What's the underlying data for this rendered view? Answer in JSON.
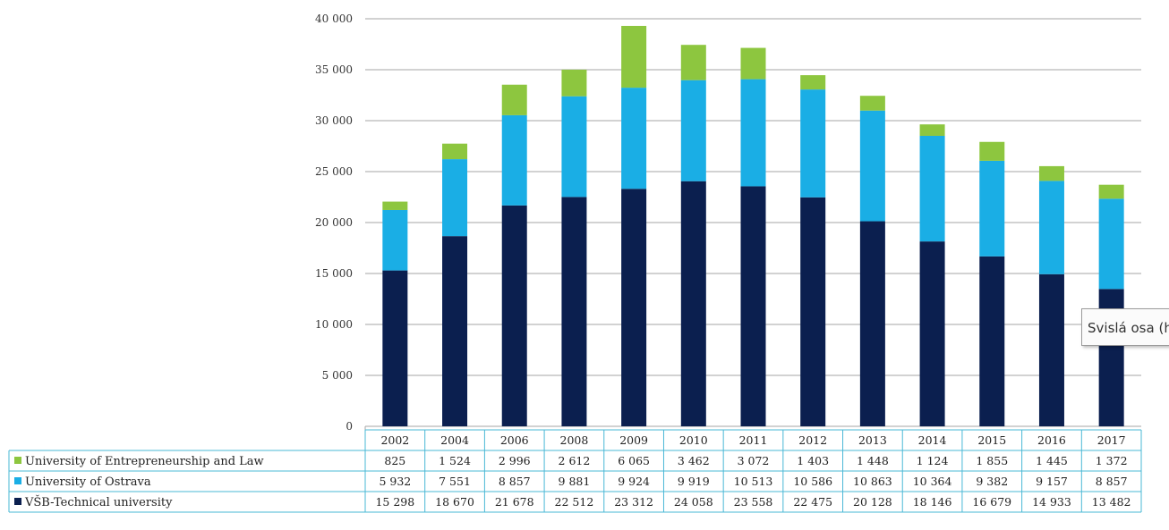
{
  "chart_data": {
    "type": "bar",
    "stacked": true,
    "categories": [
      "2002",
      "2004",
      "2006",
      "2008",
      "2009",
      "2010",
      "2011",
      "2012",
      "2013",
      "2014",
      "2015",
      "2016",
      "2017"
    ],
    "series": [
      {
        "name": "VŠB-Technical university",
        "values": [
          15298,
          18670,
          21678,
          22512,
          23312,
          24058,
          23558,
          22475,
          20128,
          18146,
          16679,
          14933,
          13482
        ],
        "labels": [
          "15 298",
          "18 670",
          "21 678",
          "22 512",
          "23 312",
          "24 058",
          "23 558",
          "22 475",
          "20 128",
          "18 146",
          "16 679",
          "14 933",
          "13 482"
        ]
      },
      {
        "name": "University of Ostrava",
        "values": [
          5932,
          7551,
          8857,
          9881,
          9924,
          9919,
          10513,
          10586,
          10863,
          10364,
          9382,
          9157,
          8857
        ],
        "labels": [
          "5 932",
          "7 551",
          "8 857",
          "9 881",
          "9 924",
          "9 919",
          "10 513",
          "10 586",
          "10 863",
          "10 364",
          "9 382",
          "9 157",
          "8 857"
        ]
      },
      {
        "name": "University of Entrepreneurship and Law",
        "values": [
          825,
          1524,
          2996,
          2612,
          6065,
          3462,
          3072,
          1403,
          1448,
          1124,
          1855,
          1445,
          1372
        ],
        "labels": [
          "825",
          "1 524",
          "2 996",
          "2 612",
          "6 065",
          "3 462",
          "3 072",
          "1 403",
          "1 448",
          "1 124",
          "1 855",
          "1 445",
          "1 372"
        ]
      }
    ],
    "table_order": [
      2,
      1,
      0
    ],
    "colors": [
      "#0b1f4f",
      "#1aaee5",
      "#8dc63f"
    ],
    "ylim": [
      0,
      40000
    ],
    "yticks": [
      0,
      5000,
      10000,
      15000,
      20000,
      25000,
      30000,
      35000,
      40000
    ],
    "ytick_labels": [
      "0",
      "5 000",
      "10 000",
      "15 000",
      "20 000",
      "25 000",
      "30 000",
      "35 000",
      "40 000"
    ],
    "grid": true,
    "legend": "data-table-left",
    "title": "",
    "xlabel": "",
    "ylabel": ""
  },
  "tooltip": {
    "text": "Svislá osa (hodnota)"
  }
}
